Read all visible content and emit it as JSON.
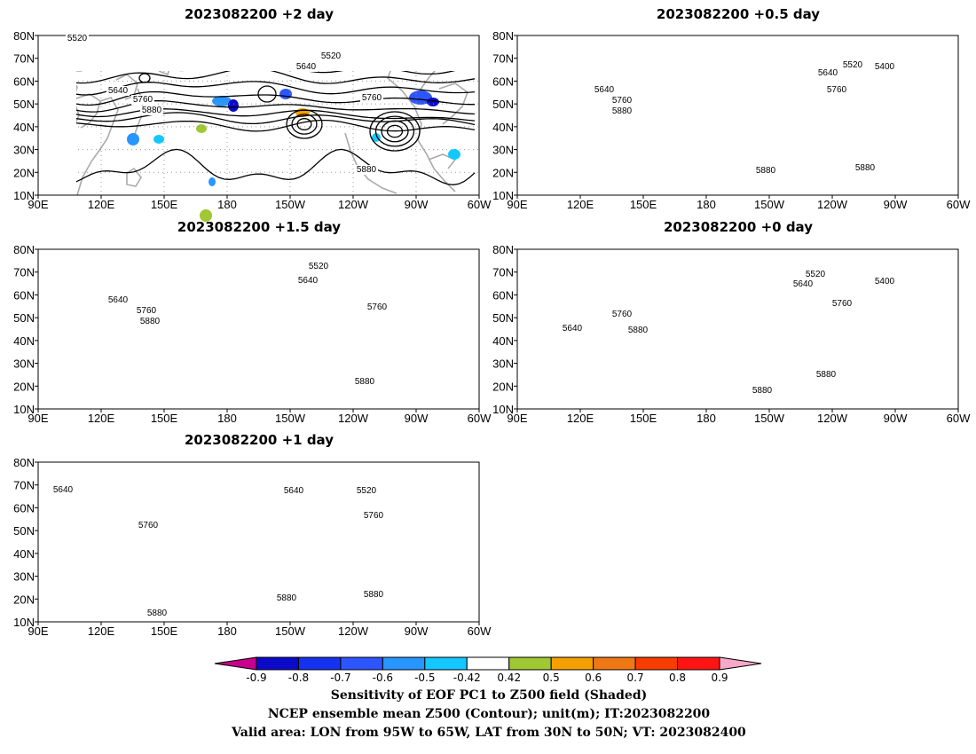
{
  "panels": [
    {
      "title": "2023082200  +2 day",
      "labels": [
        "5520",
        "5520",
        "5640",
        "5640",
        "5760",
        "5760",
        "5880",
        "5880"
      ]
    },
    {
      "title": "2023082200  +0.5 day",
      "labels": [
        "5520",
        "5400",
        "5640",
        "5640",
        "5760",
        "5760",
        "5880",
        "5880",
        "5880"
      ]
    },
    {
      "title": "2023082200  +1.5 day",
      "labels": [
        "5520",
        "5640",
        "5640",
        "5760",
        "5760",
        "5880",
        "5880"
      ]
    },
    {
      "title": "2023082200  +0 day",
      "labels": [
        "5520",
        "5640",
        "5400",
        "5640",
        "5760",
        "5760",
        "5880",
        "5880",
        "5880"
      ]
    },
    {
      "title": "2023082200  +1 day",
      "labels": [
        "5640",
        "5640",
        "5520",
        "5760",
        "5760",
        "5880",
        "5880",
        "5880"
      ]
    }
  ],
  "map": {
    "lat_labels": [
      "80N",
      "70N",
      "60N",
      "50N",
      "40N",
      "30N",
      "20N",
      "10N"
    ],
    "lon_labels": [
      "90E",
      "120E",
      "150E",
      "180",
      "150W",
      "120W",
      "90W",
      "60W"
    ]
  },
  "colorbar": {
    "ticks": [
      "-0.9",
      "-0.8",
      "-0.7",
      "-0.6",
      "-0.5",
      "-0.42",
      "0.42",
      "0.5",
      "0.6",
      "0.7",
      "0.8",
      "0.9"
    ],
    "colors": [
      "#c8008c",
      "#0a0ac8",
      "#1432f0",
      "#2d55ff",
      "#2896ff",
      "#14c8ff",
      "#ffffff",
      "#a0c832",
      "#f5a000",
      "#f07814",
      "#fa3c00",
      "#ff1414",
      "#f8a8c8"
    ]
  },
  "caption": {
    "line1": "Sensitivity of EOF PC1 to Z500 field (Shaded)",
    "line2": "NCEP ensemble mean Z500 (Contour); unit(m); IT:2023082200",
    "line3": "Valid area: LON from 95W to 65W, LAT from 30N to 50N; VT: 2023082400"
  },
  "style": {
    "coast": "#aaaaaa",
    "contour": "#000000",
    "grid": "#999999"
  }
}
